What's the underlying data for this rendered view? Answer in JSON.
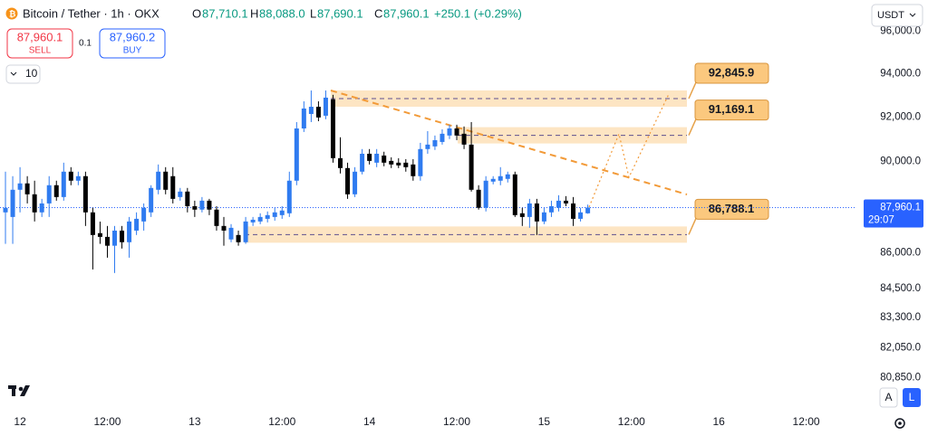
{
  "header": {
    "symbol": "Bitcoin / Tether · 1h · OKX",
    "ohlc": [
      {
        "key": "O",
        "value": "87,710.1"
      },
      {
        "key": "H",
        "value": "88,088.0"
      },
      {
        "key": "L",
        "value": "87,690.1"
      },
      {
        "key": "C",
        "value": "87,960.1"
      }
    ],
    "change": "+250.1 (+0.29%)"
  },
  "trade": {
    "sell_price": "87,960.1",
    "sell": "SELL",
    "spread": "0.1",
    "buy_price": "87,960.2",
    "buy": "BUY",
    "indicators": "10"
  },
  "currency": "USDT",
  "scale_buttons": [
    "A",
    "L"
  ],
  "chart_data": {
    "type": "candlestick",
    "log_scale": true,
    "grid": false,
    "up_color": "#2f7bf0",
    "down_color": "#000000",
    "x": [
      0,
      1,
      2,
      3,
      4,
      5,
      6,
      7,
      8,
      9,
      10,
      11,
      12,
      13,
      14,
      15,
      16,
      17,
      18,
      19,
      20,
      21,
      22,
      23,
      24,
      25,
      26,
      27,
      28,
      29,
      30,
      31,
      32,
      33,
      34,
      35,
      36,
      37,
      38,
      39,
      40,
      41,
      42,
      43,
      44,
      45,
      46,
      47,
      48,
      49,
      50,
      51,
      52,
      53,
      54,
      55,
      56,
      57,
      58,
      59,
      60,
      61,
      62,
      63,
      64,
      65,
      66,
      67,
      68,
      69,
      70,
      71,
      72,
      73,
      74,
      75,
      76,
      77,
      78,
      79,
      80
    ],
    "open": [
      87750,
      87550,
      88740,
      89020,
      88540,
      87750,
      88140,
      88940,
      88420,
      89540,
      89140,
      89340,
      87750,
      86850,
      86690,
      86310,
      86960,
      86460,
      86960,
      87355,
      87750,
      88740,
      89540,
      89340,
      88420,
      88660,
      88020,
      87870,
      88260,
      87870,
      87160,
      86580,
      86770,
      86460,
      87315,
      87355,
      87470,
      87550,
      87630,
      87710,
      89140,
      91480,
      92140,
      92470,
      92060,
      92810,
      90140,
      89700,
      88540,
      89540,
      90340,
      89940,
      90260,
      90020,
      89940,
      89940,
      89860,
      89340,
      90550,
      90670,
      90870,
      91160,
      91480,
      91240,
      90750,
      88740,
      87950,
      89100,
      89140,
      89220,
      89420,
      87710,
      87550,
      88140,
      87355,
      87750,
      87950,
      88260,
      88140,
      87470,
      87710.1
    ],
    "high": [
      89540,
      89340,
      89740,
      89340,
      89140,
      88340,
      89340,
      89140,
      89940,
      89740,
      89540,
      89540,
      87950,
      87350,
      87160,
      87160,
      87160,
      87550,
      87750,
      88140,
      88940,
      89860,
      89740,
      89740,
      88820,
      88820,
      88260,
      88420,
      88340,
      88020,
      87550,
      87240,
      86960,
      87550,
      87550,
      87710,
      87790,
      87950,
      88020,
      89540,
      91770,
      92720,
      93220,
      92720,
      93220,
      93020,
      91080,
      89940,
      89740,
      90550,
      90550,
      90550,
      90430,
      90180,
      90140,
      90100,
      90100,
      90830,
      91360,
      91160,
      91440,
      91650,
      91650,
      91570,
      91770,
      88940,
      89340,
      89340,
      89740,
      89540,
      89540,
      87950,
      88340,
      88340,
      87950,
      88260,
      88500,
      88460,
      88420,
      87950,
      88088.0
    ],
    "low": [
      86390,
      86390,
      87750,
      88140,
      87355,
      87550,
      87550,
      88260,
      88260,
      88940,
      88940,
      87160,
      85300,
      86390,
      85800,
      85150,
      86190,
      85800,
      86770,
      86960,
      87550,
      88540,
      88540,
      88140,
      88260,
      87750,
      87550,
      87750,
      87630,
      86960,
      86310,
      86460,
      86310,
      86390,
      87160,
      87240,
      87315,
      87390,
      87470,
      87550,
      88940,
      91320,
      91770,
      91810,
      91900,
      89940,
      89460,
      88340,
      88420,
      89420,
      89860,
      89740,
      89780,
      89700,
      89700,
      89540,
      89140,
      89140,
      90340,
      90510,
      90750,
      91000,
      90950,
      90550,
      88660,
      87870,
      87790,
      88980,
      88940,
      89060,
      87550,
      87160,
      87080,
      86770,
      87240,
      87550,
      87790,
      88020,
      87160,
      87355,
      87690.1
    ],
    "close": [
      87950,
      88740,
      89020,
      88540,
      87750,
      88140,
      88940,
      88420,
      89540,
      89140,
      89340,
      87750,
      86770,
      86690,
      86310,
      86960,
      86460,
      87355,
      87470,
      87950,
      88820,
      89540,
      88740,
      88340,
      88660,
      88020,
      87870,
      88260,
      87870,
      87160,
      86960,
      87080,
      86460,
      87355,
      87430,
      87550,
      87630,
      87750,
      87830,
      89140,
      91480,
      92390,
      92470,
      91980,
      92890,
      90140,
      89700,
      88540,
      89540,
      90340,
      90020,
      90340,
      89940,
      89860,
      89820,
      89740,
      89340,
      90550,
      90750,
      90950,
      91240,
      91480,
      91160,
      90750,
      88740,
      87950,
      89140,
      89220,
      89340,
      89420,
      87630,
      87550,
      88140,
      87355,
      87750,
      88020,
      88260,
      88140,
      87470,
      87750,
      87960.1
    ],
    "last_price": {
      "value": 87960.1,
      "label": "87,960.1",
      "countdown": "29:07"
    },
    "levels": [
      {
        "value": 92845.9,
        "label": "92,845.9"
      },
      {
        "value": 91169.1,
        "label": "91,169.1"
      },
      {
        "value": 86788.1,
        "label": "86,788.1"
      }
    ],
    "ylim": [
      79600,
      97500
    ],
    "yticks": [
      {
        "value": 96000,
        "label": "96,000.0"
      },
      {
        "value": 94000,
        "label": "94,000.0"
      },
      {
        "value": 92000,
        "label": "92,000.0"
      },
      {
        "value": 90000,
        "label": "90,000.0"
      },
      {
        "value": 86000,
        "label": "86,000.0"
      },
      {
        "value": 84500,
        "label": "84,500.0"
      },
      {
        "value": 83300,
        "label": "83,300.0"
      },
      {
        "value": 82050,
        "label": "82,050.0"
      },
      {
        "value": 80850,
        "label": "80,850.0"
      }
    ],
    "xlim": [
      -0.75,
      116.9
    ],
    "xticks": [
      {
        "value": 2,
        "label": "12"
      },
      {
        "value": 14,
        "label": "12:00"
      },
      {
        "value": 26,
        "label": "13"
      },
      {
        "value": 38,
        "label": "12:00"
      },
      {
        "value": 50,
        "label": "14"
      },
      {
        "value": 62,
        "label": "12:00"
      },
      {
        "value": 74,
        "label": "15"
      },
      {
        "value": 86,
        "label": "12:00"
      },
      {
        "value": 98,
        "label": "16"
      },
      {
        "value": 110,
        "label": "12:00"
      }
    ]
  }
}
